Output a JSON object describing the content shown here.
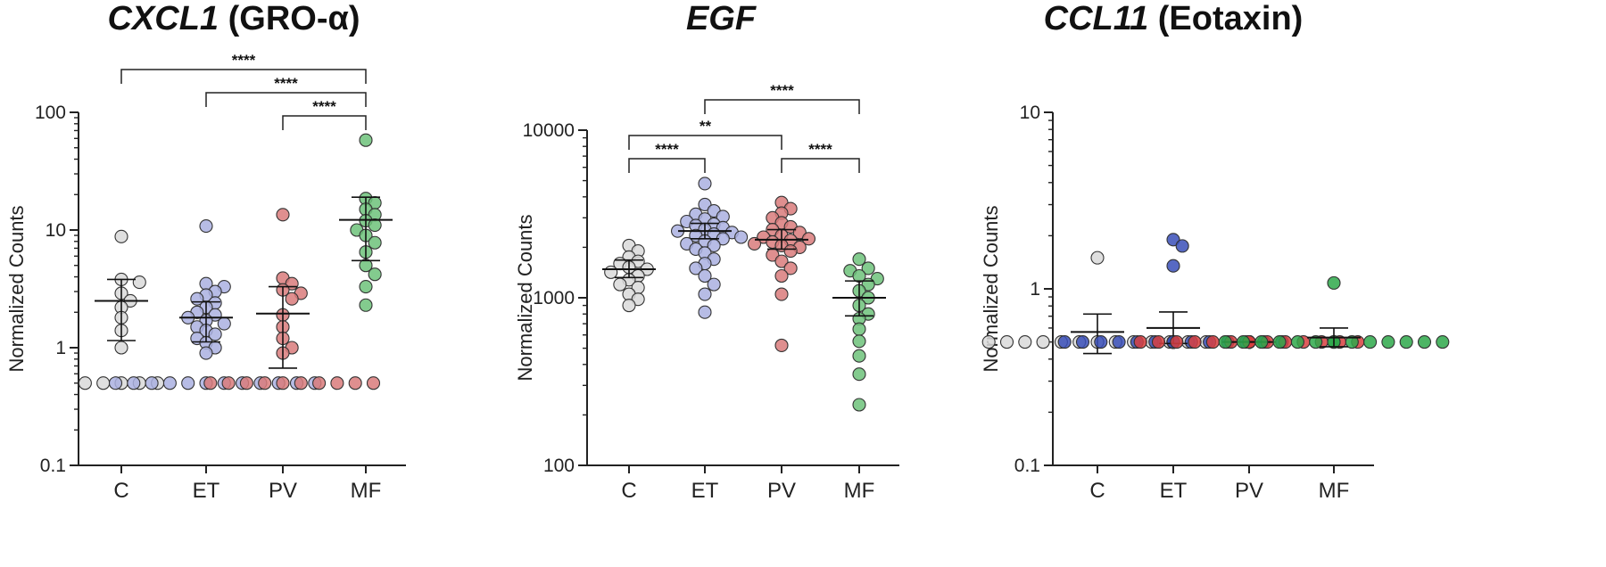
{
  "colors": {
    "C": "#d9d9d9",
    "ET": "#aab0e0",
    "PV": "#d97b7b",
    "MF": "#6dc27a",
    "ET_panel3": "#3a4fb8",
    "PV_panel3": "#d84040",
    "MF_panel3": "#2ea84a",
    "stroke": "#333333"
  },
  "chart_data": [
    {
      "type": "scatter",
      "title_italic": "CXCL1",
      "title_rest": " (GRO-α)",
      "ylabel": "Normalized Counts",
      "yscale": "log",
      "ylim": [
        0.1,
        100
      ],
      "yticks": [
        {
          "value": 0.1,
          "label": "0.1"
        },
        {
          "value": 1,
          "label": "1"
        },
        {
          "value": 10,
          "label": "10"
        },
        {
          "value": 100,
          "label": "100"
        }
      ],
      "categories": [
        "C",
        "ET",
        "PV",
        "MF"
      ],
      "series": [
        {
          "values": [
            8.8,
            3.8,
            3.6,
            2.9,
            2.5,
            2.2,
            1.8,
            1.4,
            1.0,
            0.5,
            0.5,
            0.5,
            0.5,
            0.5
          ],
          "mean": 2.5,
          "err": [
            1.15,
            3.8
          ]
        },
        {
          "values": [
            10.8,
            3.5,
            3.3,
            3.0,
            2.8,
            2.6,
            2.4,
            2.2,
            2.0,
            1.9,
            1.8,
            1.7,
            1.6,
            1.5,
            1.4,
            1.3,
            1.2,
            1.1,
            1.0,
            0.9,
            0.5,
            0.5,
            0.5,
            0.5,
            0.5,
            0.5,
            0.5,
            0.5,
            0.5,
            0.5,
            0.5,
            0.5
          ],
          "mean": 1.8,
          "err": [
            1.12,
            2.45
          ]
        },
        {
          "values": [
            13.5,
            3.9,
            3.5,
            3.1,
            2.9,
            2.6,
            1.9,
            1.5,
            1.2,
            1.0,
            0.9,
            0.5,
            0.5,
            0.5,
            0.5,
            0.5,
            0.5,
            0.5,
            0.5,
            0.5,
            0.5
          ],
          "mean": 1.95,
          "err": [
            0.67,
            3.3
          ]
        },
        {
          "values": [
            58,
            18.5,
            17,
            15,
            13.5,
            12,
            11,
            10,
            9,
            7.8,
            6.5,
            5.0,
            4.2,
            3.3,
            2.3
          ],
          "mean": 12.2,
          "err": [
            5.5,
            19
          ]
        }
      ],
      "comparisons": [
        {
          "from": "C",
          "to": "MF",
          "label": "****"
        },
        {
          "from": "ET",
          "to": "MF",
          "label": "****"
        },
        {
          "from": "PV",
          "to": "MF",
          "label": "****"
        }
      ]
    },
    {
      "type": "scatter",
      "title_italic": "EGF",
      "title_rest": "",
      "ylabel": "Normalized Counts",
      "yscale": "log",
      "ylim": [
        100,
        10000
      ],
      "yticks": [
        {
          "value": 100,
          "label": "100"
        },
        {
          "value": 1000,
          "label": "1000"
        },
        {
          "value": 10000,
          "label": "10000"
        }
      ],
      "categories": [
        "C",
        "ET",
        "PV",
        "MF"
      ],
      "series": [
        {
          "values": [
            2050,
            1900,
            1750,
            1650,
            1600,
            1520,
            1480,
            1420,
            1350,
            1280,
            1200,
            1150,
            1050,
            980,
            900
          ],
          "mean": 1480,
          "err": [
            1320,
            1680
          ]
        },
        {
          "values": [
            4800,
            3600,
            3300,
            3150,
            3050,
            2950,
            2850,
            2750,
            2700,
            2620,
            2560,
            2500,
            2450,
            2400,
            2350,
            2300,
            2250,
            2180,
            2100,
            2050,
            1950,
            1850,
            1700,
            1600,
            1500,
            1350,
            1200,
            1050,
            820
          ],
          "mean": 2500,
          "err": [
            2250,
            2780
          ]
        },
        {
          "values": [
            3700,
            3400,
            3200,
            3000,
            2800,
            2650,
            2550,
            2450,
            2350,
            2300,
            2250,
            2200,
            2150,
            2100,
            2050,
            2000,
            1900,
            1800,
            1650,
            1500,
            1350,
            1050,
            520
          ],
          "mean": 2220,
          "err": [
            1950,
            2550
          ]
        },
        {
          "values": [
            1700,
            1500,
            1450,
            1350,
            1300,
            1200,
            1100,
            1000,
            900,
            800,
            750,
            650,
            550,
            450,
            350,
            230
          ],
          "mean": 1000,
          "err": [
            780,
            1260
          ]
        }
      ],
      "comparisons": [
        {
          "from": "C",
          "to": "ET",
          "label": "****"
        },
        {
          "from": "C",
          "to": "PV",
          "label": "**"
        },
        {
          "from": "ET",
          "to": "MF",
          "label": "****"
        },
        {
          "from": "PV",
          "to": "MF",
          "label": "****"
        }
      ]
    },
    {
      "type": "scatter",
      "title_italic": "CCL11",
      "title_rest": " (Eotaxin)",
      "ylabel": "Normalized Counts",
      "yscale": "log",
      "ylim": [
        0.1,
        10
      ],
      "yticks": [
        {
          "value": 0.1,
          "label": "0.1"
        },
        {
          "value": 1,
          "label": "1"
        },
        {
          "value": 10,
          "label": "10"
        }
      ],
      "categories": [
        "C",
        "ET",
        "PV",
        "MF"
      ],
      "series": [
        {
          "values": [
            1.5,
            0.5,
            0.5,
            0.5,
            0.5,
            0.5,
            0.5,
            0.5,
            0.5,
            0.5,
            0.5,
            0.5,
            0.5,
            0.5
          ],
          "mean": 0.57,
          "err": [
            0.43,
            0.72
          ]
        },
        {
          "values": [
            1.9,
            1.75,
            1.35,
            0.5,
            0.5,
            0.5,
            0.5,
            0.5,
            0.5,
            0.5,
            0.5,
            0.5,
            0.5,
            0.5,
            0.5,
            0.5,
            0.5,
            0.5,
            0.5,
            0.5,
            0.5,
            0.5,
            0.5,
            0.5,
            0.5,
            0.5,
            0.5,
            0.5,
            0.5
          ],
          "mean": 0.6,
          "err": [
            0.49,
            0.74
          ]
        },
        {
          "values": [
            0.5,
            0.5,
            0.5,
            0.5,
            0.5,
            0.5,
            0.5,
            0.5,
            0.5,
            0.5,
            0.5,
            0.5,
            0.5,
            0.5,
            0.5,
            0.5,
            0.5,
            0.5,
            0.5,
            0.5,
            0.5,
            0.5
          ],
          "mean": 0.5,
          "err": [
            0.5,
            0.5
          ]
        },
        {
          "values": [
            1.08,
            0.5,
            0.5,
            0.5,
            0.5,
            0.5,
            0.5,
            0.5,
            0.5,
            0.5,
            0.5,
            0.5,
            0.5,
            0.5,
            0.5
          ],
          "mean": 0.53,
          "err": [
            0.47,
            0.6
          ]
        }
      ],
      "comparisons": []
    }
  ]
}
